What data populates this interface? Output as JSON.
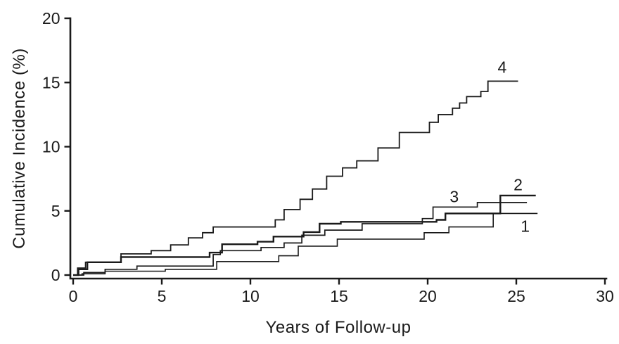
{
  "figure": {
    "background": "#ffffff",
    "line_color": "#1a1a1a"
  },
  "chart_data": {
    "type": "line",
    "subtype": "step-post",
    "title": "",
    "xlabel": "Years of Follow-up",
    "ylabel": "Cumulative Incidence (%)",
    "xlim": [
      0,
      30
    ],
    "ylim": [
      0,
      20
    ],
    "xticks": [
      0,
      5,
      10,
      15,
      20,
      25,
      30
    ],
    "yticks": [
      0,
      5,
      10,
      15,
      20
    ],
    "grid": false,
    "legend_position": "none-inline-curve-labels",
    "series": [
      {
        "name": "1",
        "label": "1",
        "label_at": {
          "year": 25.5,
          "pct": 3.8
        },
        "end_year": 26.2,
        "stroke_width": 1.6,
        "points": [
          [
            0,
            0
          ],
          [
            0.5,
            0.1
          ],
          [
            1.8,
            0.3
          ],
          [
            5.2,
            0.45
          ],
          [
            8.1,
            1.05
          ],
          [
            11.6,
            1.5
          ],
          [
            12.7,
            2.25
          ],
          [
            14.9,
            2.8
          ],
          [
            19.8,
            3.3
          ],
          [
            21.2,
            3.75
          ],
          [
            23.7,
            4.8
          ]
        ]
      },
      {
        "name": "2",
        "label": "2",
        "label_at": {
          "year": 25.1,
          "pct": 7.05
        },
        "end_year": 26.1,
        "stroke_width": 2.4,
        "points": [
          [
            0,
            0
          ],
          [
            0.3,
            0.45
          ],
          [
            0.8,
            1.0
          ],
          [
            2.7,
            1.4
          ],
          [
            7.7,
            1.75
          ],
          [
            8.4,
            2.4
          ],
          [
            10.4,
            2.6
          ],
          [
            11.3,
            3.0
          ],
          [
            13.0,
            3.35
          ],
          [
            13.9,
            4.0
          ],
          [
            15.1,
            4.15
          ],
          [
            20.5,
            4.3
          ],
          [
            21.0,
            4.8
          ],
          [
            24.1,
            6.2
          ]
        ]
      },
      {
        "name": "3",
        "label": "3",
        "label_at": {
          "year": 21.5,
          "pct": 6.1
        },
        "end_year": 25.6,
        "stroke_width": 1.7,
        "points": [
          [
            0,
            0
          ],
          [
            0.6,
            0.2
          ],
          [
            1.8,
            0.45
          ],
          [
            3.6,
            0.7
          ],
          [
            7.9,
            1.6
          ],
          [
            8.3,
            1.9
          ],
          [
            10.6,
            2.15
          ],
          [
            11.9,
            2.5
          ],
          [
            12.9,
            3.1
          ],
          [
            14.2,
            3.5
          ],
          [
            16.3,
            4.0
          ],
          [
            19.7,
            4.4
          ],
          [
            20.3,
            5.3
          ],
          [
            22.8,
            5.65
          ]
        ]
      },
      {
        "name": "4",
        "label": "4",
        "label_at": {
          "year": 24.2,
          "pct": 16.2
        },
        "end_year": 25.1,
        "stroke_width": 1.8,
        "points": [
          [
            0,
            0
          ],
          [
            0.25,
            0.55
          ],
          [
            0.7,
            1.0
          ],
          [
            2.7,
            1.65
          ],
          [
            4.4,
            1.9
          ],
          [
            5.5,
            2.35
          ],
          [
            6.5,
            2.9
          ],
          [
            7.3,
            3.3
          ],
          [
            7.9,
            3.75
          ],
          [
            11.4,
            4.3
          ],
          [
            11.9,
            5.1
          ],
          [
            12.8,
            5.9
          ],
          [
            13.5,
            6.7
          ],
          [
            14.3,
            7.7
          ],
          [
            15.2,
            8.35
          ],
          [
            16.0,
            8.9
          ],
          [
            17.2,
            9.9
          ],
          [
            18.4,
            11.1
          ],
          [
            20.1,
            11.9
          ],
          [
            20.6,
            12.5
          ],
          [
            21.4,
            13.0
          ],
          [
            21.8,
            13.4
          ],
          [
            22.2,
            13.9
          ],
          [
            23.0,
            14.3
          ],
          [
            23.4,
            15.1
          ]
        ]
      }
    ]
  }
}
